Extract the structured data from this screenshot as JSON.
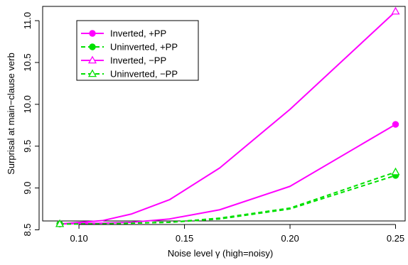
{
  "chart_data": {
    "type": "line",
    "title": "",
    "xlabel": "Noise level γ (high=noisy)",
    "ylabel": "Surprisal at main−clause verb",
    "xlim": [
      0.09,
      0.25
    ],
    "ylim": [
      8.5,
      11.1
    ],
    "x_ticks": [
      0.1,
      0.15,
      0.2,
      0.25
    ],
    "x_tick_labels": [
      "0.10",
      "0.15",
      "0.20",
      "0.25"
    ],
    "y_ticks": [
      8.5,
      9.0,
      9.5,
      10.0,
      10.5,
      11.0
    ],
    "y_tick_labels": [
      "8.5",
      "9.0",
      "9.5",
      "10.0",
      "10.5",
      "11.0"
    ],
    "grid": false,
    "legend_position": "top-left",
    "series": [
      {
        "name": "Inverted, +PP",
        "color": "#ff00ff",
        "line_style": "solid",
        "marker": "filled-circle",
        "x": [
          0.0909,
          0.1111,
          0.125,
          0.1429,
          0.1667,
          0.2,
          0.25
        ],
        "y": [
          8.57,
          8.58,
          8.59,
          8.63,
          8.74,
          9.02,
          9.76
        ],
        "marker_indices": [
          0,
          6
        ]
      },
      {
        "name": "Uninverted, +PP",
        "color": "#00e000",
        "line_style": "dashed",
        "marker": "filled-circle",
        "x": [
          0.0909,
          0.1111,
          0.125,
          0.1429,
          0.1667,
          0.2,
          0.25
        ],
        "y": [
          8.57,
          8.57,
          8.58,
          8.59,
          8.63,
          8.75,
          9.15
        ],
        "marker_indices": [
          0,
          6
        ]
      },
      {
        "name": "Inverted, −PP",
        "color": "#ff00ff",
        "line_style": "solid",
        "marker": "open-triangle",
        "x": [
          0.0909,
          0.1111,
          0.125,
          0.1429,
          0.1667,
          0.2,
          0.25
        ],
        "y": [
          8.57,
          8.61,
          8.69,
          8.86,
          9.24,
          9.94,
          11.11
        ],
        "marker_indices": [
          0,
          6
        ]
      },
      {
        "name": "Uninverted, −PP",
        "color": "#00e000",
        "line_style": "dashed",
        "marker": "open-triangle",
        "x": [
          0.0909,
          0.1111,
          0.125,
          0.1429,
          0.1667,
          0.2,
          0.25
        ],
        "y": [
          8.57,
          8.57,
          8.58,
          8.59,
          8.64,
          8.76,
          9.19
        ],
        "marker_indices": [
          0,
          6
        ]
      }
    ]
  }
}
